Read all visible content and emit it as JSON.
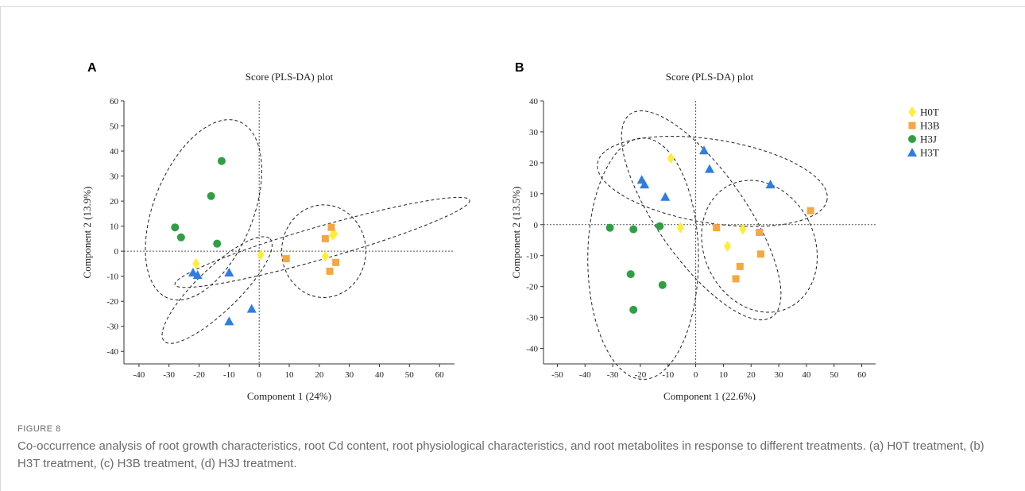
{
  "figure": {
    "label": "FIGURE 8",
    "caption": "Co-occurrence analysis of root growth characteristics, root Cd content, root physiological characteristics, and root metabolites in response to different treatments. (a) H0T treatment, (b) H3T treatment, (c) H3B treatment, (d) H3J treatment."
  },
  "colors": {
    "H0T": "#ffee33",
    "H3B": "#f5a742",
    "H3J": "#2ea043",
    "H3T": "#2f7de1"
  },
  "legend": {
    "items": [
      {
        "name": "H0T",
        "marker": "diamond",
        "color": "#ffee33"
      },
      {
        "name": "H3B",
        "marker": "square",
        "color": "#f5a742"
      },
      {
        "name": "H3J",
        "marker": "circle",
        "color": "#2ea043"
      },
      {
        "name": "H3T",
        "marker": "triangle",
        "color": "#2f7de1"
      }
    ]
  },
  "chart_data": [
    {
      "panel": "A",
      "type": "scatter",
      "title": "Score (PLS-DA) plot",
      "xlabel": "Component 1 (24%)",
      "ylabel": "Component 2 (13.9%)",
      "xlim": [
        -45,
        65
      ],
      "ylim": [
        -45,
        60
      ],
      "xticks": [
        -40,
        -30,
        -20,
        -10,
        0,
        10,
        20,
        30,
        40,
        50,
        60
      ],
      "yticks": [
        -40,
        -30,
        -20,
        -10,
        0,
        10,
        20,
        30,
        40,
        50,
        60
      ],
      "reference_lines": {
        "x": 0,
        "y": 0
      },
      "series": [
        {
          "name": "H0T",
          "points": [
            [
              -21,
              -5
            ],
            [
              0.5,
              -1.5
            ],
            [
              22,
              -2
            ],
            [
              25,
              7
            ],
            [
              24.5,
              6.5
            ]
          ]
        },
        {
          "name": "H3B",
          "points": [
            [
              9,
              -3
            ],
            [
              22,
              5
            ],
            [
              24,
              9.5
            ],
            [
              25.5,
              -4.5
            ],
            [
              23.5,
              -8
            ]
          ]
        },
        {
          "name": "H3J",
          "points": [
            [
              -28,
              9.5
            ],
            [
              -26,
              5.5
            ],
            [
              -16,
              22
            ],
            [
              -12.5,
              36
            ],
            [
              -14,
              3
            ]
          ]
        },
        {
          "name": "H3T",
          "points": [
            [
              -22,
              -8.5
            ],
            [
              -20.5,
              -9.5
            ],
            [
              -10,
              -8.5
            ],
            [
              -10,
              -28
            ],
            [
              -2.5,
              -23
            ]
          ]
        }
      ],
      "ellipses": [
        {
          "group": "H3J",
          "cx": -18.5,
          "cy": 16.5,
          "rx": 16.5,
          "ry": 38,
          "angle": 22
        },
        {
          "group": "H3T",
          "cx": -14,
          "cy": -15.5,
          "rx": 24.5,
          "ry": 8.5,
          "angle": -44
        },
        {
          "group": "H0T",
          "cx": 21,
          "cy": 3.5,
          "rx": 51,
          "ry": 6.5,
          "angle": -16
        },
        {
          "group": "H3B",
          "cx": 21.5,
          "cy": 0,
          "rx": 14,
          "ry": 18.5,
          "angle": 0
        }
      ]
    },
    {
      "panel": "B",
      "type": "scatter",
      "title": "Score (PLS-DA) plot",
      "xlabel": "Component 1 (22.6%)",
      "ylabel": "Component 2 (13.5%)",
      "xlim": [
        -55,
        65
      ],
      "ylim": [
        -45,
        40
      ],
      "xticks": [
        -50,
        -40,
        -30,
        -20,
        -10,
        0,
        10,
        20,
        30,
        40,
        50,
        60
      ],
      "yticks": [
        -40,
        -30,
        -20,
        -10,
        0,
        10,
        20,
        30,
        40
      ],
      "reference_lines": {
        "x": 0,
        "y": 0
      },
      "series": [
        {
          "name": "H0T",
          "points": [
            [
              -9,
              21.5
            ],
            [
              -5.5,
              -1
            ],
            [
              11.5,
              -7
            ],
            [
              17,
              -1.5
            ]
          ]
        },
        {
          "name": "H3B",
          "points": [
            [
              7.5,
              -1
            ],
            [
              14.5,
              -17.5
            ],
            [
              16,
              -13.5
            ],
            [
              23,
              -2.5
            ],
            [
              23.5,
              -9.5
            ],
            [
              41.5,
              4.5
            ]
          ]
        },
        {
          "name": "H3J",
          "points": [
            [
              -31,
              -1
            ],
            [
              -22.5,
              -1.5
            ],
            [
              -23.5,
              -16
            ],
            [
              -22.5,
              -27.5
            ],
            [
              -13,
              -0.5
            ],
            [
              -12,
              -19.5
            ]
          ]
        },
        {
          "name": "H3T",
          "points": [
            [
              -19.5,
              14.5
            ],
            [
              -18.5,
              13
            ],
            [
              -11,
              9
            ],
            [
              3,
              24
            ],
            [
              5,
              18
            ],
            [
              27,
              13
            ]
          ]
        }
      ],
      "ellipses": [
        {
          "group": "H3J",
          "cx": -19,
          "cy": -11,
          "rx": 20,
          "ry": 39,
          "angle": 0
        },
        {
          "group": "H3T",
          "cx": 6,
          "cy": 14,
          "rx": 42,
          "ry": 13.5,
          "angle": 9
        },
        {
          "group": "H0T",
          "cx": 2,
          "cy": 3,
          "rx": 16,
          "ry": 40,
          "angle": -35
        },
        {
          "group": "H3B",
          "cx": 23,
          "cy": -7,
          "rx": 20,
          "ry": 22,
          "angle": -25
        }
      ]
    }
  ]
}
